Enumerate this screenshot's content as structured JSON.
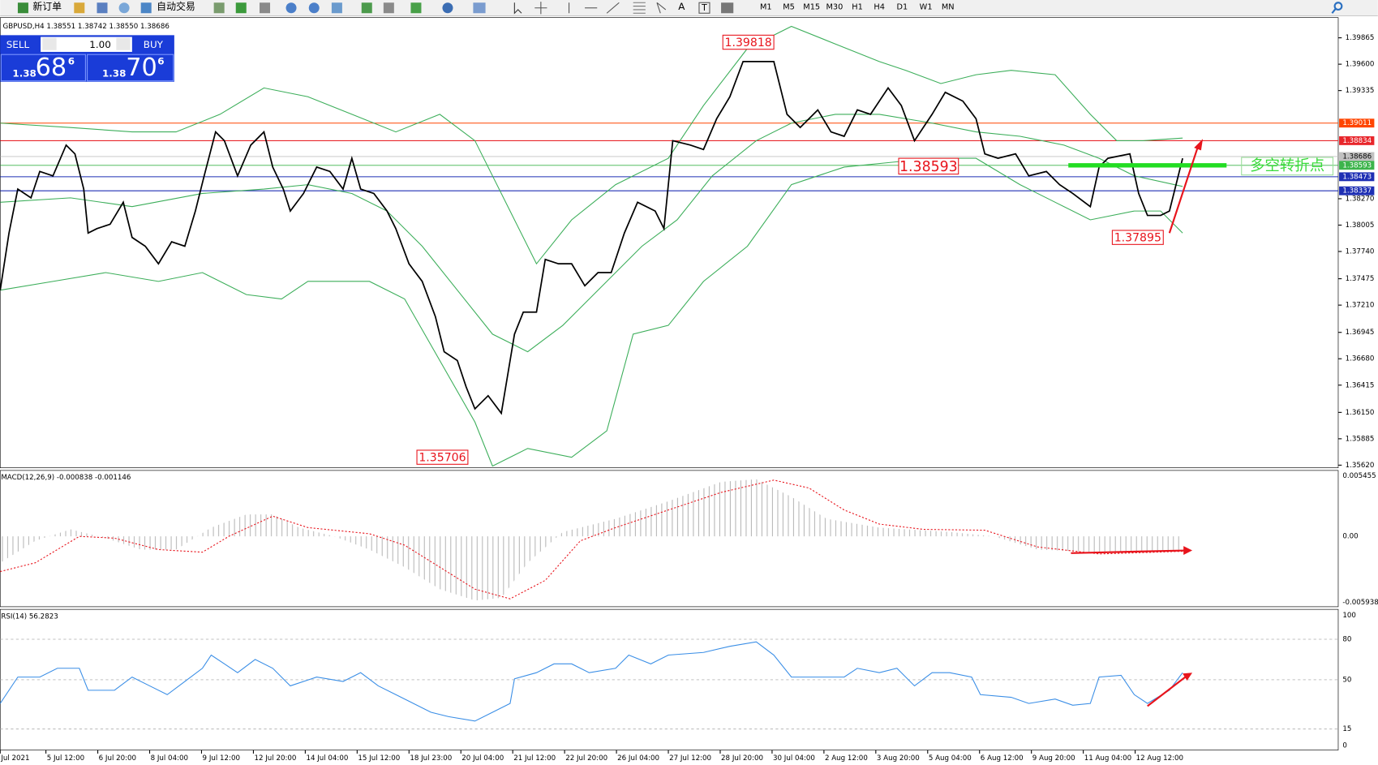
{
  "toolbar": {
    "new_order": "新订单",
    "auto_trading": "自动交易",
    "timeframes": [
      "M1",
      "M5",
      "M15",
      "M30",
      "H1",
      "H4",
      "D1",
      "W1",
      "MN"
    ]
  },
  "chart_header": "GBPUSD,H4  1.38551 1.38742 1.38550 1.38686",
  "trade_panel": {
    "sell": "SELL",
    "buy": "BUY",
    "lot": "1.00",
    "sell_big": "1.38",
    "sell_main": "68",
    "sell_sup": "6",
    "buy_big": "1.38",
    "buy_main": "70",
    "buy_sup": "6"
  },
  "price_axis": [
    "1.39865",
    "1.39600",
    "1.39335",
    "1.38270",
    "1.38005",
    "1.37740",
    "1.37475",
    "1.37210",
    "1.36945",
    "1.36680",
    "1.36415",
    "1.36150",
    "1.35885",
    "1.35620"
  ],
  "price_markers": [
    {
      "label": "1.39011",
      "color": "#ff4500"
    },
    {
      "label": "1.38834",
      "color": "#e8262b"
    },
    {
      "label": "1.38686",
      "color": "#c0c0c0"
    },
    {
      "label": "1.38593",
      "color": "#3cb44b"
    },
    {
      "label": "1.38473",
      "color": "#1e2fb4"
    },
    {
      "label": "1.38337",
      "color": "#1e2fb4"
    }
  ],
  "annotations": [
    "1.39818",
    "1.38593",
    "1.37895",
    "1.35706"
  ],
  "turning_point_note": "多空转折点",
  "macd": {
    "label": "MACD(12,26,9) -0.000838 -0.001146",
    "axis": [
      "0.005455",
      "0.00",
      "-0.005938"
    ]
  },
  "rsi": {
    "label": "RSI(14) 56.2823",
    "axis": [
      "100",
      "80",
      "50",
      "15",
      "0"
    ]
  },
  "time_axis": [
    "Jul 2021",
    "5 Jul 12:00",
    "6 Jul 20:00",
    "8 Jul 04:00",
    "9 Jul 12:00",
    "12 Jul 20:00",
    "14 Jul 04:00",
    "15 Jul 12:00",
    "18 Jul 23:00",
    "20 Jul 04:00",
    "21 Jul 12:00",
    "22 Jul 20:00",
    "26 Jul 04:00",
    "27 Jul 12:00",
    "28 Jul 20:00",
    "30 Jul 04:00",
    "2 Aug 12:00",
    "3 Aug 20:00",
    "5 Aug 04:00",
    "6 Aug 12:00",
    "9 Aug 20:00",
    "11 Aug 04:00",
    "12 Aug 12:00"
  ]
}
